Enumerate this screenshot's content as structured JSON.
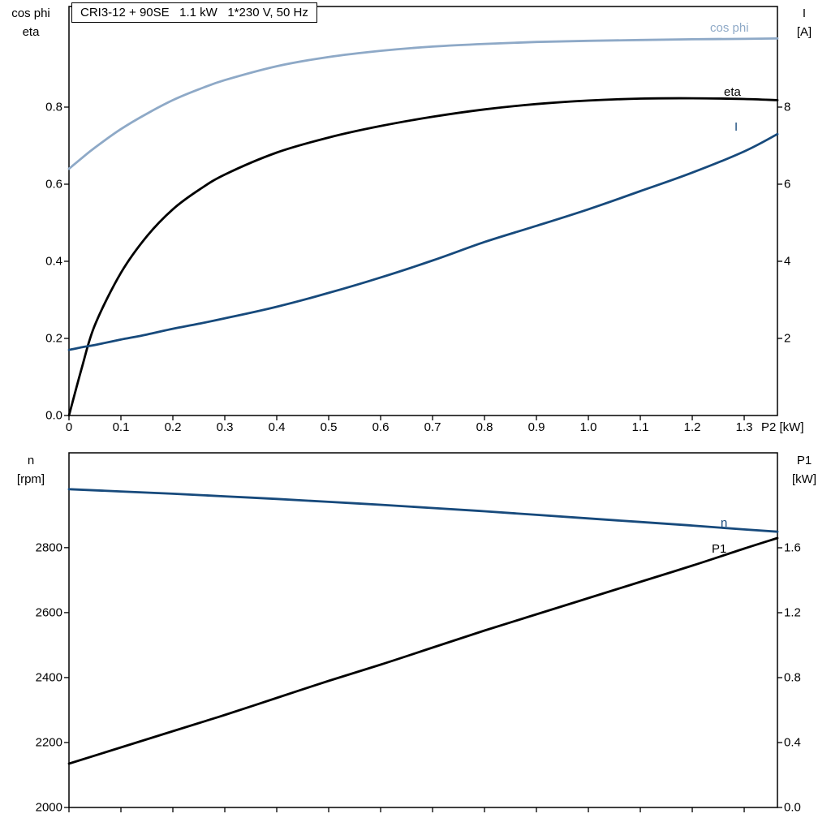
{
  "colors": {
    "light_blue": "#8ea9c7",
    "dark_blue": "#174a7c",
    "black": "#000000",
    "frame": "#000000"
  },
  "chart_data": [
    {
      "type": "line",
      "title": "CRI3-12 + 90SE   1.1 kW   1*230 V, 50 Hz",
      "grid": false,
      "legend_position": "end-of-curve",
      "x_axis": {
        "label": "P2 [kW]",
        "min": 0,
        "max": 1.364,
        "ticks": [
          0,
          0.1,
          0.2,
          0.3,
          0.4,
          0.5,
          0.6,
          0.7,
          0.8,
          0.9,
          1.0,
          1.1,
          1.2,
          1.3
        ],
        "tick_labels": [
          "0",
          "0.1",
          "0.2",
          "0.3",
          "0.4",
          "0.5",
          "0.6",
          "0.7",
          "0.8",
          "0.9",
          "1.0",
          "1.1",
          "1.2",
          "1.3"
        ]
      },
      "y_left_axis": {
        "label_lines": [
          "cos phi",
          "eta"
        ],
        "min": 0,
        "max": 1.061,
        "ticks": [
          0,
          0.2,
          0.4,
          0.6,
          0.8
        ],
        "tick_labels": [
          "0.0",
          "0.2",
          "0.4",
          "0.6",
          "0.8"
        ]
      },
      "y_right_axis": {
        "label_lines": [
          "I",
          "[A]"
        ],
        "min": 0,
        "max": 10.61,
        "ticks": [
          2,
          4,
          6,
          8
        ],
        "tick_labels": [
          "2",
          "4",
          "6",
          "8"
        ]
      },
      "series": [
        {
          "name": "cos phi",
          "axis": "left",
          "color": "#8ea9c7",
          "x": [
            0,
            0.025,
            0.05,
            0.1,
            0.15,
            0.2,
            0.25,
            0.3,
            0.4,
            0.5,
            0.6,
            0.7,
            0.8,
            0.9,
            1.0,
            1.1,
            1.2,
            1.3,
            1.364
          ],
          "y": [
            0.64,
            0.668,
            0.695,
            0.743,
            0.783,
            0.818,
            0.846,
            0.87,
            0.906,
            0.93,
            0.946,
            0.957,
            0.964,
            0.969,
            0.972,
            0.974,
            0.976,
            0.977,
            0.978
          ]
        },
        {
          "name": "eta",
          "axis": "left",
          "color": "#000000",
          "x": [
            0,
            0.025,
            0.05,
            0.1,
            0.15,
            0.2,
            0.25,
            0.3,
            0.4,
            0.5,
            0.6,
            0.7,
            0.8,
            0.9,
            1.0,
            1.1,
            1.2,
            1.3,
            1.364
          ],
          "y": [
            0,
            0.125,
            0.235,
            0.37,
            0.465,
            0.535,
            0.585,
            0.625,
            0.682,
            0.721,
            0.751,
            0.775,
            0.794,
            0.808,
            0.817,
            0.822,
            0.823,
            0.821,
            0.818
          ]
        },
        {
          "name": "I",
          "axis": "right",
          "color": "#174a7c",
          "x": [
            0,
            0.025,
            0.05,
            0.1,
            0.15,
            0.2,
            0.25,
            0.3,
            0.4,
            0.5,
            0.6,
            0.7,
            0.8,
            0.9,
            1.0,
            1.1,
            1.2,
            1.3,
            1.364
          ],
          "y": [
            1.7,
            1.77,
            1.83,
            1.97,
            2.1,
            2.25,
            2.38,
            2.52,
            2.82,
            3.18,
            3.58,
            4.02,
            4.5,
            4.92,
            5.35,
            5.82,
            6.3,
            6.85,
            7.3
          ]
        }
      ]
    },
    {
      "type": "line",
      "title": "",
      "grid": false,
      "legend_position": "end-of-curve",
      "x_axis": {
        "label": "",
        "min": 0,
        "max": 1.364,
        "ticks": [
          0,
          0.1,
          0.2,
          0.3,
          0.4,
          0.5,
          0.6,
          0.7,
          0.8,
          0.9,
          1.0,
          1.1,
          1.2,
          1.3
        ],
        "tick_labels": []
      },
      "y_left_axis": {
        "label_lines": [
          "n",
          "[rpm]"
        ],
        "min": 2000,
        "max": 3092,
        "ticks": [
          2000,
          2200,
          2400,
          2600,
          2800
        ],
        "tick_labels": [
          "2000",
          "2200",
          "2400",
          "2600",
          "2800"
        ]
      },
      "y_right_axis": {
        "label_lines": [
          "P1",
          "[kW]"
        ],
        "min": 0,
        "max": 2.185,
        "ticks": [
          0,
          0.4,
          0.8,
          1.2,
          1.6
        ],
        "tick_labels": [
          "0.0",
          "0.4",
          "0.8",
          "1.2",
          "1.6"
        ]
      },
      "series": [
        {
          "name": "n",
          "axis": "left",
          "color": "#174a7c",
          "x": [
            0,
            0.1,
            0.2,
            0.3,
            0.4,
            0.5,
            0.6,
            0.7,
            0.8,
            0.9,
            1.0,
            1.1,
            1.2,
            1.3,
            1.364
          ],
          "y": [
            2980,
            2973,
            2966,
            2958,
            2950,
            2941,
            2932,
            2922,
            2912,
            2901,
            2890,
            2879,
            2868,
            2856,
            2849
          ]
        },
        {
          "name": "P1",
          "axis": "right",
          "color": "#000000",
          "x": [
            0,
            0.1,
            0.2,
            0.3,
            0.4,
            0.5,
            0.6,
            0.7,
            0.8,
            0.9,
            1.0,
            1.1,
            1.2,
            1.3,
            1.364
          ],
          "y": [
            0.27,
            0.37,
            0.47,
            0.57,
            0.675,
            0.78,
            0.88,
            0.985,
            1.09,
            1.19,
            1.29,
            1.39,
            1.49,
            1.595,
            1.66
          ]
        }
      ]
    }
  ]
}
